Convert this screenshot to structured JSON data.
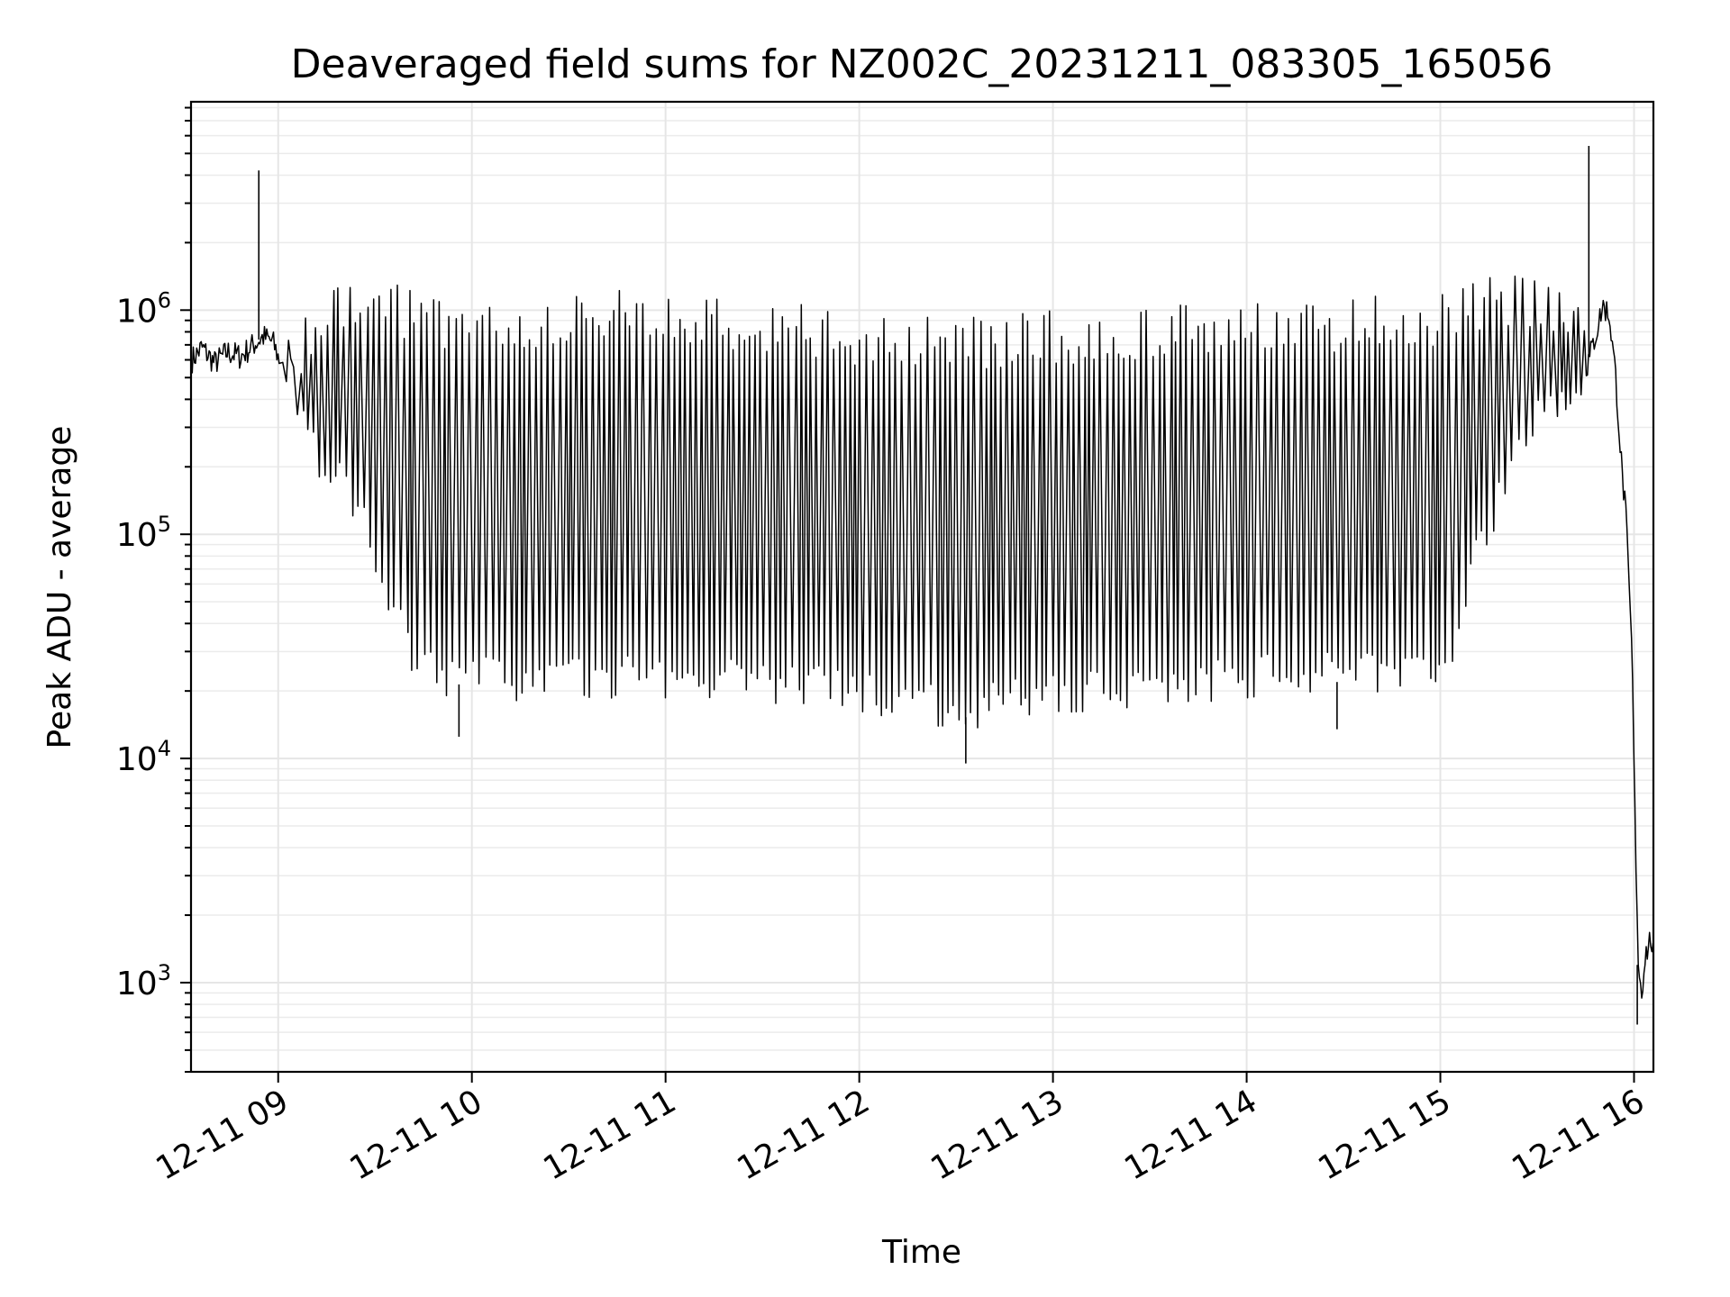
{
  "chart_data": {
    "type": "line",
    "title": "Deaveraged field sums for NZ002C_20231211_083305_165056",
    "xlabel": "Time",
    "ylabel": "Peak ADU - average",
    "yscale": "log",
    "ylim": [
      400,
      8500000
    ],
    "xlim": [
      "2023-12-11 08:33",
      "2023-12-11 16:06"
    ],
    "grid": true,
    "line_color": "#000000",
    "grid_color": "#e6e6e6",
    "x_ticks": [
      {
        "time": "2023-12-11 09:00",
        "label": "12-11 09"
      },
      {
        "time": "2023-12-11 10:00",
        "label": "12-11 10"
      },
      {
        "time": "2023-12-11 11:00",
        "label": "12-11 11"
      },
      {
        "time": "2023-12-11 12:00",
        "label": "12-11 12"
      },
      {
        "time": "2023-12-11 13:00",
        "label": "12-11 13"
      },
      {
        "time": "2023-12-11 14:00",
        "label": "12-11 14"
      },
      {
        "time": "2023-12-11 15:00",
        "label": "12-11 15"
      },
      {
        "time": "2023-12-11 16:00",
        "label": "12-11 16"
      }
    ],
    "y_ticks": [
      {
        "value": 1000,
        "base": "10",
        "exp": "3"
      },
      {
        "value": 10000,
        "base": "10",
        "exp": "4"
      },
      {
        "value": 100000,
        "base": "10",
        "exp": "5"
      },
      {
        "value": 1000000,
        "base": "10",
        "exp": "6"
      }
    ],
    "series": [
      {
        "points": [
          [
            "2023-12-11 08:33",
            600000
          ],
          [
            "2023-12-11 08:36",
            680000
          ],
          [
            "2023-12-11 08:40",
            580000
          ],
          [
            "2023-12-11 08:44",
            650000
          ],
          [
            "2023-12-11 08:48",
            620000
          ],
          [
            "2023-12-11 08:52",
            700000
          ],
          [
            "2023-12-11 08:55",
            760000
          ],
          [
            "2023-12-11 08:58",
            720000
          ],
          [
            "2023-12-11 09:00",
            600000
          ],
          [
            "2023-12-11 09:03",
            450000
          ],
          [
            "2023-12-11 09:06",
            320000
          ],
          [
            "2023-12-11 09:10",
            220000
          ],
          [
            "2023-12-11 09:15",
            180000
          ],
          [
            "2023-12-11 09:20",
            150000
          ],
          [
            "2023-12-11 09:25",
            100000
          ],
          [
            "2023-12-11 09:30",
            60000
          ],
          [
            "2023-12-11 09:35",
            40000
          ],
          [
            "2023-12-11 09:40",
            28000
          ],
          [
            "2023-12-11 09:45",
            24000
          ],
          [
            "2023-12-11 09:50",
            22000
          ],
          [
            "2023-12-11 10:00",
            21000
          ],
          [
            "2023-12-11 10:30",
            20500
          ],
          [
            "2023-12-11 11:00",
            21000
          ],
          [
            "2023-12-11 11:30",
            20000
          ],
          [
            "2023-12-11 12:00",
            18000
          ],
          [
            "2023-12-11 12:30",
            15000
          ],
          [
            "2023-12-11 13:00",
            18000
          ],
          [
            "2023-12-11 13:30",
            19000
          ],
          [
            "2023-12-11 14:00",
            21000
          ],
          [
            "2023-12-11 14:30",
            22000
          ],
          [
            "2023-12-11 15:00",
            24000
          ],
          [
            "2023-12-11 15:05",
            40000
          ],
          [
            "2023-12-11 15:10",
            70000
          ],
          [
            "2023-12-11 15:15",
            110000
          ],
          [
            "2023-12-11 15:20",
            170000
          ],
          [
            "2023-12-11 15:25",
            240000
          ],
          [
            "2023-12-11 15:30",
            300000
          ],
          [
            "2023-12-11 15:35",
            340000
          ],
          [
            "2023-12-11 15:40",
            400000
          ],
          [
            "2023-12-11 15:45",
            550000
          ],
          [
            "2023-12-11 15:48",
            800000
          ],
          [
            "2023-12-11 15:50",
            1050000
          ],
          [
            "2023-12-11 15:52",
            950000
          ],
          [
            "2023-12-11 15:54",
            500000
          ],
          [
            "2023-12-11 15:56",
            180000
          ],
          [
            "2023-12-11 15:57",
            130000
          ],
          [
            "2023-12-11 15:59",
            30000
          ],
          [
            "2023-12-11 16:00",
            5000
          ],
          [
            "2023-12-11 16:01",
            1200
          ],
          [
            "2023-12-11 16:02",
            900
          ],
          [
            "2023-12-11 16:03",
            1300
          ],
          [
            "2023-12-11 16:05",
            1600
          ],
          [
            "2023-12-11 16:06",
            1100
          ]
        ],
        "upper_envelope": [
          [
            "2023-12-11 09:00",
            700000
          ],
          [
            "2023-12-11 09:10",
            1000000
          ],
          [
            "2023-12-11 09:20",
            1450000
          ],
          [
            "2023-12-11 09:30",
            1500000
          ],
          [
            "2023-12-11 09:40",
            1250000
          ],
          [
            "2023-12-11 10:00",
            1150000
          ],
          [
            "2023-12-11 10:30",
            1200000
          ],
          [
            "2023-12-11 11:00",
            1250000
          ],
          [
            "2023-12-11 11:30",
            1150000
          ],
          [
            "2023-12-11 12:00",
            1000000
          ],
          [
            "2023-12-11 12:30",
            920000
          ],
          [
            "2023-12-11 13:00",
            1000000
          ],
          [
            "2023-12-11 13:30",
            1050000
          ],
          [
            "2023-12-11 14:00",
            1100000
          ],
          [
            "2023-12-11 14:30",
            1150000
          ],
          [
            "2023-12-11 15:00",
            1200000
          ],
          [
            "2023-12-11 15:20",
            1500000
          ],
          [
            "2023-12-11 15:35",
            1400000
          ],
          [
            "2023-12-11 15:45",
            1100000
          ]
        ],
        "oscillation_period_min": 1.8,
        "spikes": [
          {
            "time": "2023-12-11 08:54",
            "value": 4200000
          },
          {
            "time": "2023-12-11 09:56",
            "value": 12500
          },
          {
            "time": "2023-12-11 12:33",
            "value": 9500
          },
          {
            "time": "2023-12-11 14:28",
            "value": 13500
          },
          {
            "time": "2023-12-11 15:46",
            "value": 5400000
          },
          {
            "time": "2023-12-11 16:01",
            "value": 650
          }
        ]
      }
    ]
  }
}
